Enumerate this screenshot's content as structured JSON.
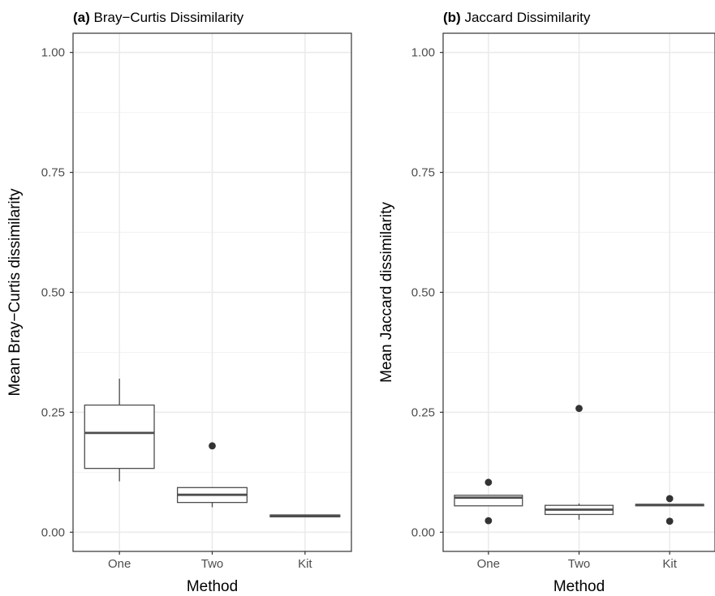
{
  "chart_data": [
    {
      "type": "box",
      "title_tag": "(a)",
      "title": "Bray−Curtis Dissimilarity",
      "xlabel": "Method",
      "ylabel": "Mean Bray−Curtis dissimilarity",
      "ylim": [
        -0.04,
        1.04
      ],
      "yticks": [
        "0.00",
        "0.25",
        "0.50",
        "0.75",
        "1.00"
      ],
      "ytick_values": [
        0,
        0.25,
        0.5,
        0.75,
        1.0
      ],
      "categories": [
        "One",
        "Two",
        "Kit"
      ],
      "grid": true,
      "boxes": [
        {
          "category": "One",
          "min": 0.106,
          "q1": 0.133,
          "median": 0.207,
          "q3": 0.265,
          "max": 0.32,
          "outliers": []
        },
        {
          "category": "Two",
          "min": 0.052,
          "q1": 0.062,
          "median": 0.078,
          "q3": 0.093,
          "max": 0.093,
          "outliers": [
            0.18
          ]
        },
        {
          "category": "Kit",
          "min": 0.032,
          "q1": 0.032,
          "median": 0.034,
          "q3": 0.036,
          "max": 0.036,
          "outliers": []
        }
      ]
    },
    {
      "type": "box",
      "title_tag": "(b)",
      "title": "Jaccard Dissimilarity",
      "xlabel": "Method",
      "ylabel": "Mean Jaccard dissimilarity",
      "ylim": [
        -0.04,
        1.04
      ],
      "yticks": [
        "0.00",
        "0.25",
        "0.50",
        "0.75",
        "1.00"
      ],
      "ytick_values": [
        0,
        0.25,
        0.5,
        0.75,
        1.0
      ],
      "categories": [
        "One",
        "Two",
        "Kit"
      ],
      "grid": true,
      "boxes": [
        {
          "category": "One",
          "min": 0.054,
          "q1": 0.055,
          "median": 0.072,
          "q3": 0.077,
          "max": 0.077,
          "outliers": [
            0.104,
            0.024
          ]
        },
        {
          "category": "Two",
          "min": 0.026,
          "q1": 0.037,
          "median": 0.047,
          "q3": 0.056,
          "max": 0.06,
          "outliers": [
            0.258
          ]
        },
        {
          "category": "Kit",
          "min": 0.055,
          "q1": 0.055,
          "median": 0.057,
          "q3": 0.058,
          "max": 0.058,
          "outliers": [
            0.07,
            0.023
          ]
        }
      ]
    }
  ],
  "colors": {
    "box_line": "#4d4d4d",
    "point": "#333333",
    "grid_major": "#ebebeb",
    "grid_minor": "#f2f2f2",
    "panel_border": "#333333"
  }
}
